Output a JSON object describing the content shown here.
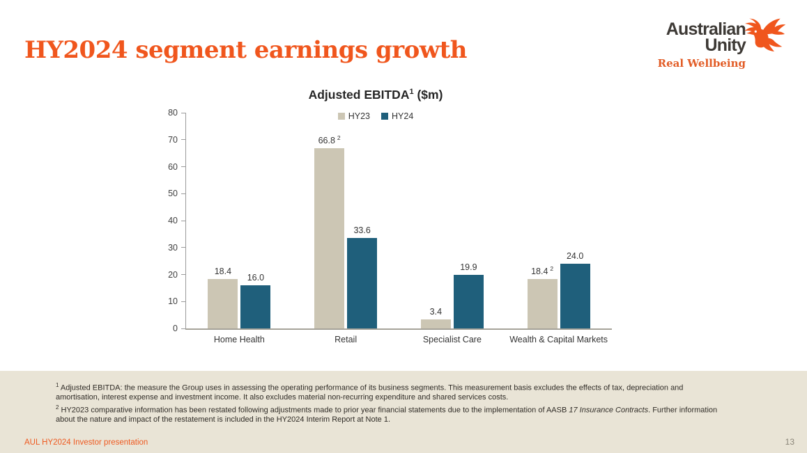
{
  "page": {
    "title": "HY2024 segment earnings growth",
    "footer_left": "AUL HY2024 Investor presentation",
    "page_number": "13"
  },
  "logo": {
    "name_line1": "Australian",
    "name_line2": "Unity",
    "tagline": "Real Wellbeing",
    "bird_icon": "phoenix-bird-icon"
  },
  "chart_data": {
    "type": "bar",
    "title_main": "Adjusted EBITDA",
    "title_sup": "1",
    "title_suffix": " ($m)",
    "title_full": "Adjusted EBITDA¹ ($m)",
    "categories": [
      "Home Health",
      "Retail",
      "Specialist Care",
      "Wealth & Capital Markets"
    ],
    "series": [
      {
        "name": "HY23",
        "color": "#ccc6b4",
        "values": [
          18.4,
          66.8,
          3.4,
          18.4
        ],
        "labels": [
          "18.4",
          "66.8",
          "3.4",
          "18.4"
        ],
        "label_sups": [
          "",
          "2",
          "",
          "2"
        ]
      },
      {
        "name": "HY24",
        "color": "#1f5f7b",
        "values": [
          16.0,
          33.6,
          19.9,
          24.0
        ],
        "labels": [
          "16.0",
          "33.6",
          "19.9",
          "24.0"
        ],
        "label_sups": [
          "",
          "",
          "",
          ""
        ]
      }
    ],
    "ylim": [
      0,
      80
    ],
    "yticks": [
      0,
      10,
      20,
      30,
      40,
      50,
      60,
      70,
      80
    ],
    "grid": false,
    "legend_position": "top-center"
  },
  "footnotes": {
    "note1_sup": "1",
    "note1_text": " Adjusted EBITDA: the measure the Group uses in assessing the operating performance of its business segments. This measurement basis excludes the effects of tax, depreciation and amortisation, interest expense and investment income. It also excludes material non-recurring expenditure and shared services costs.",
    "note2_sup": "2",
    "note2_text_before_italic": " HY2023 comparative information has been restated following adjustments made to prior year financial statements due to the implementation of AASB ",
    "note2_italic": "17 Insurance Contracts",
    "note2_text_after_italic": ". Further information about the nature and impact of the restatement is included in the HY2024 Interim Report at Note 1."
  },
  "colors": {
    "accent_orange": "#f0561d",
    "hy23_bar": "#ccc6b4",
    "hy24_bar": "#1f5f7b",
    "footer_band": "#e9e4d6",
    "logo_charcoal": "#3d3935",
    "axis_gray": "#9a9a9a",
    "text_dark": "#333333"
  }
}
